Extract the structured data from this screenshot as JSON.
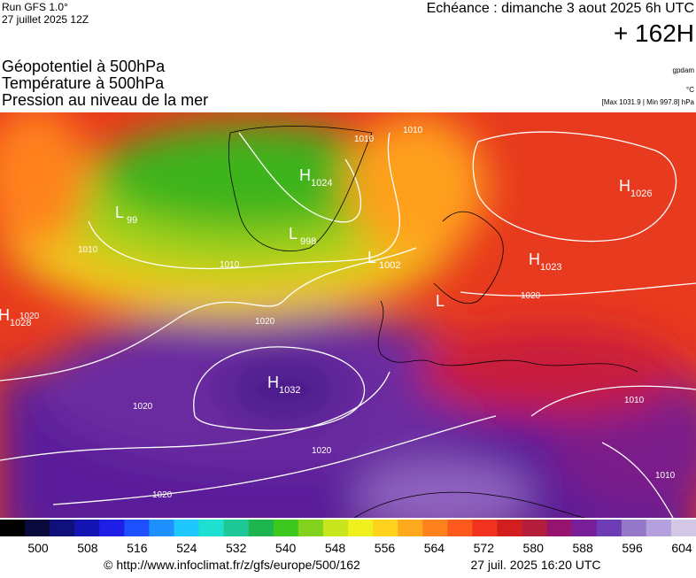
{
  "header": {
    "run": "Run GFS 1.0°",
    "run_date": "27 juillet 2025 12Z",
    "forecast": "Echéance : dimanche 3 aout 2025 6h UTC",
    "lead": "+ 162H",
    "titles": [
      "Géopotentiel à 500hPa",
      "Température à 500hPa",
      "Pression au niveau de la mer"
    ],
    "units": [
      "gpdam",
      "°C",
      "[Max 1031.9 | Min 997.8] hPa"
    ]
  },
  "map": {
    "centers": [
      {
        "kind": "H",
        "pressure": "1024"
      },
      {
        "kind": "L",
        "pressure": "998"
      },
      {
        "kind": "L",
        "pressure": "1002"
      },
      {
        "kind": "H",
        "pressure": "1026"
      },
      {
        "kind": "H",
        "pressure": "1023"
      },
      {
        "kind": "L",
        "pressure": "99"
      },
      {
        "kind": "H",
        "pressure": "1028"
      },
      {
        "kind": "H",
        "pressure": "1032"
      },
      {
        "kind": "L",
        "pressure": ""
      }
    ],
    "isobar_labels": [
      "1010",
      "1010",
      "1020",
      "1020",
      "1020",
      "1020",
      "1020",
      "1010",
      "1010",
      "1020",
      "1010",
      "1010"
    ]
  },
  "colorbar": {
    "colors": [
      "#000000",
      "#0a0a3c",
      "#10107a",
      "#1414b4",
      "#1e1ee6",
      "#1e50ff",
      "#1e90ff",
      "#1ec8ff",
      "#1ee0d0",
      "#1ec896",
      "#1eb450",
      "#3cc81e",
      "#82d21e",
      "#c8e61e",
      "#f0f01e",
      "#ffd21e",
      "#ffaa1e",
      "#ff821e",
      "#ff5a1e",
      "#f0321e",
      "#d21e1e",
      "#b41e3c",
      "#96146e",
      "#781e96",
      "#6e3cb4",
      "#9678c8",
      "#b4a0dc",
      "#d2c8e6"
    ],
    "labels": [
      500,
      508,
      516,
      524,
      532,
      540,
      548,
      556,
      564,
      572,
      580,
      588,
      596,
      604
    ]
  },
  "footer": {
    "source": "© http://www.infoclimat.fr/z/gfs/europe/500/162",
    "timestamp": "27 juil. 2025 16:20 UTC"
  }
}
